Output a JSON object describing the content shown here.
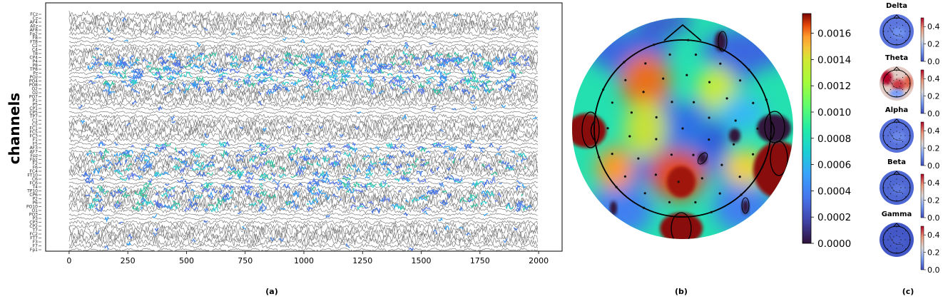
{
  "panel_labels": [
    "(a)",
    "(b)",
    "(c)"
  ],
  "chart_data": [
    {
      "type": "line",
      "description_panel": "(a)",
      "ylabel": "channels",
      "xlabel": "",
      "x_ticks": [
        0,
        250,
        500,
        750,
        1000,
        1250,
        1500,
        1750,
        2000
      ],
      "xlim": [
        -100,
        2100
      ],
      "channels": [
        "FCz",
        "Cz",
        "AF4",
        "AFz",
        "AF8",
        "Fp2",
        "F8",
        "FT8",
        "C2",
        "C4",
        "T8",
        "CP4",
        "P4",
        "P8",
        "TP8",
        "Pz",
        "POz",
        "PO4",
        "PO8",
        "O2",
        "Oz",
        "PO7",
        "P1",
        "P5",
        "CP1",
        "CP5",
        "TP7",
        "C1",
        "C5",
        "FC1",
        "FC5",
        "FC3",
        "F1",
        "F5",
        "AF3",
        "AF7",
        "Fpz",
        "Fp2",
        "F2",
        "F6",
        "FC4",
        "FT10",
        "C6",
        "FC6",
        "T4",
        "TP10",
        "CP6",
        "P2",
        "P6",
        "PO10",
        "O1",
        "PO3",
        "P3",
        "CP3",
        "CP2",
        "T7",
        "FC2",
        "FT7",
        "F3",
        "F7",
        "Fp1"
      ],
      "colormap": "turbo",
      "highlight_bands_rows": [
        [
          10,
          20
        ],
        [
          33,
          50
        ]
      ]
    },
    {
      "type": "heatmap",
      "description_panel": "(b)",
      "subtype": "scalp topomap",
      "colorbar_ticks": [
        0.0,
        0.0002,
        0.0004,
        0.0006,
        0.0008,
        0.001,
        0.0012,
        0.0014,
        0.0016
      ],
      "colorbar_tick_labels": [
        "0.0000",
        "0.0002",
        "0.0004",
        "0.0006",
        "0.0008",
        "0.0010",
        "0.0012",
        "0.0014",
        "0.0016"
      ],
      "vmin": 0.0,
      "vmax": 0.00175,
      "colormap": "turbo",
      "hotspots": [
        {
          "region": "left temporal",
          "value": 0.00175
        },
        {
          "region": "left frontal",
          "value": 0.0013
        },
        {
          "region": "right frontal",
          "value": 0.00115
        },
        {
          "region": "right temporal",
          "value": 0.00175
        },
        {
          "region": "central-parietal",
          "value": 0.00175
        },
        {
          "region": "occipital",
          "value": 0.00175
        },
        {
          "region": "right temporal top",
          "value": 0.0
        },
        {
          "region": "top edge",
          "value": 0.0
        }
      ]
    },
    {
      "type": "heatmap",
      "description_panel": "(c)",
      "subtype": "band topomaps",
      "colorbar_ticks": [
        0.0,
        0.2,
        0.4
      ],
      "colorbar_tick_labels": [
        "0.0",
        "0.2",
        "0.4"
      ],
      "vmin": 0.0,
      "vmax": 0.5,
      "colormap": "coolwarm",
      "bands": [
        {
          "name": "Delta",
          "level": 0.08
        },
        {
          "name": "Theta",
          "level": 0.35
        },
        {
          "name": "Alpha",
          "level": 0.07
        },
        {
          "name": "Beta",
          "level": 0.05
        },
        {
          "name": "Gamma",
          "level": 0.02
        }
      ]
    }
  ]
}
